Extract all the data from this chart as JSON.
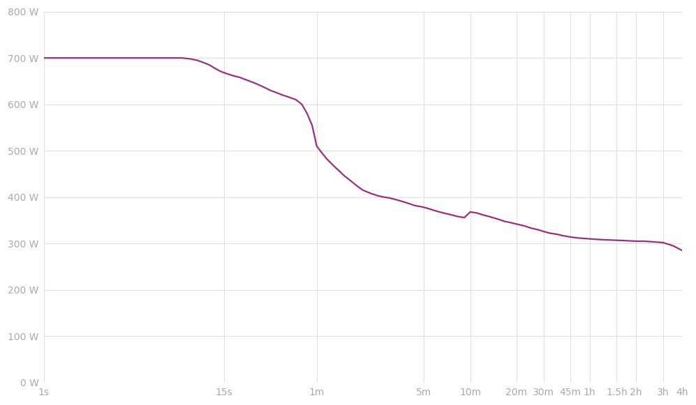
{
  "line_color": "#9b2f7f",
  "background_color": "#ffffff",
  "plot_bg_color": "#ffffff",
  "grid_color": "#e0e0e0",
  "tick_label_color": "#aaaaaa",
  "ylim": [
    0,
    800
  ],
  "yticks": [
    0,
    100,
    200,
    300,
    400,
    500,
    600,
    700,
    800
  ],
  "ytick_labels": [
    "0 W",
    "100 W",
    "200 W",
    "300 W",
    "400 W",
    "500 W",
    "600 W",
    "700 W",
    "800 W"
  ],
  "xtick_positions_seconds": [
    1,
    15,
    60,
    300,
    600,
    1200,
    1800,
    2700,
    3600,
    5400,
    7200,
    10800,
    14400
  ],
  "xtick_labels": [
    "1s",
    "15s",
    "1m",
    "5m",
    "10m",
    "20m",
    "30m",
    "45m",
    "1h",
    "1.5h",
    "2h",
    "3h",
    "4h"
  ],
  "line_width": 1.6,
  "data_x_seconds": [
    1,
    2,
    3,
    4,
    5,
    6,
    7,
    8,
    9,
    10,
    11,
    12,
    13,
    14,
    15,
    16,
    17,
    18,
    19,
    20,
    22,
    24,
    26,
    28,
    30,
    33,
    36,
    40,
    44,
    48,
    52,
    56,
    60,
    65,
    70,
    75,
    80,
    85,
    90,
    100,
    110,
    120,
    135,
    150,
    165,
    180,
    200,
    220,
    240,
    260,
    280,
    300,
    330,
    360,
    400,
    450,
    500,
    550,
    600,
    660,
    720,
    800,
    900,
    1000,
    1100,
    1200,
    1350,
    1500,
    1650,
    1800,
    2000,
    2200,
    2400,
    2700,
    3000,
    3300,
    3600,
    4000,
    4500,
    5400,
    6300,
    7200,
    8100,
    9000,
    10800,
    12600,
    14400
  ],
  "data_y_watts": [
    700,
    700,
    700,
    700,
    700,
    700,
    700,
    700,
    698,
    695,
    690,
    685,
    678,
    672,
    668,
    665,
    662,
    660,
    658,
    655,
    650,
    645,
    640,
    635,
    630,
    625,
    620,
    615,
    610,
    600,
    580,
    555,
    510,
    495,
    482,
    472,
    463,
    455,
    447,
    435,
    424,
    415,
    408,
    403,
    400,
    398,
    394,
    390,
    386,
    382,
    380,
    378,
    374,
    370,
    366,
    362,
    358,
    356,
    368,
    366,
    362,
    358,
    353,
    348,
    345,
    342,
    338,
    333,
    330,
    326,
    322,
    320,
    317,
    314,
    312,
    311,
    310,
    309,
    308,
    307,
    306,
    305,
    305,
    304,
    302,
    295,
    285
  ]
}
